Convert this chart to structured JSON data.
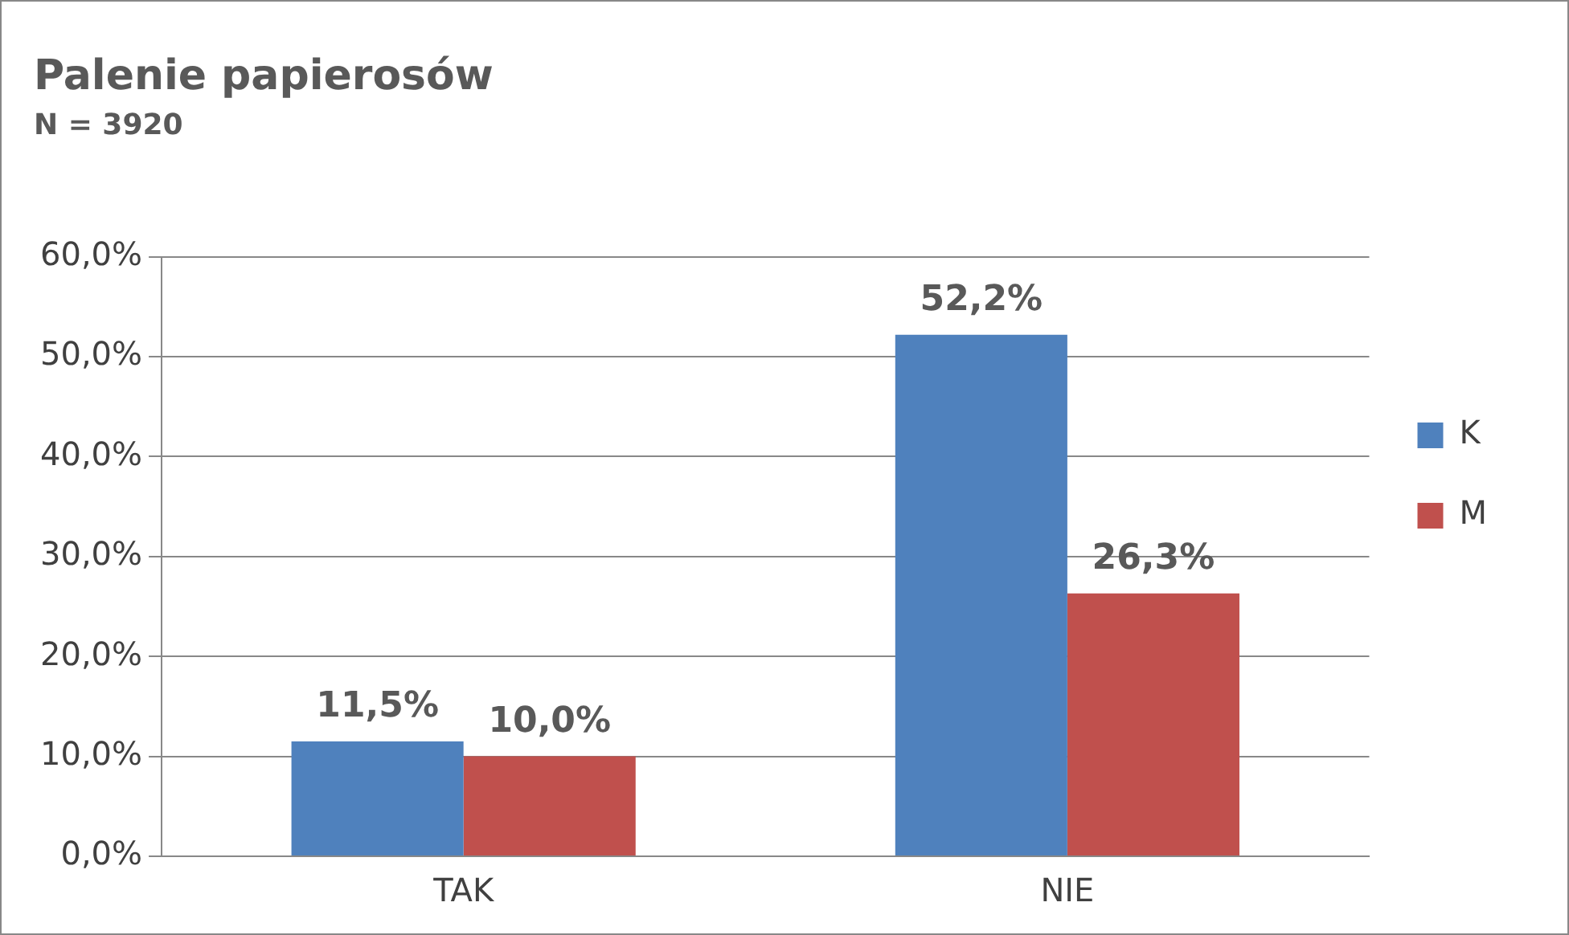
{
  "chart_data": {
    "type": "bar",
    "title": "Palenie papierosów",
    "subtitle": "N = 3920",
    "categories": [
      "TAK",
      "NIE"
    ],
    "series": [
      {
        "name": "K",
        "color": "#4f81bd",
        "values": [
          11.5,
          52.2
        ],
        "value_labels": [
          "11,5%",
          "52,2%"
        ]
      },
      {
        "name": "M",
        "color": "#c0504d",
        "values": [
          10.0,
          26.3
        ],
        "value_labels": [
          "10,0%",
          "26,3%"
        ]
      }
    ],
    "ylim": [
      0,
      60
    ],
    "yticks": [
      {
        "value": 0,
        "label": "0,0%"
      },
      {
        "value": 10,
        "label": "10,0%"
      },
      {
        "value": 20,
        "label": "20,0%"
      },
      {
        "value": 30,
        "label": "30,0%"
      },
      {
        "value": 40,
        "label": "40,0%"
      },
      {
        "value": 50,
        "label": "50,0%"
      },
      {
        "value": 60,
        "label": "60,0%"
      }
    ],
    "grid": "y",
    "legend": "right"
  }
}
